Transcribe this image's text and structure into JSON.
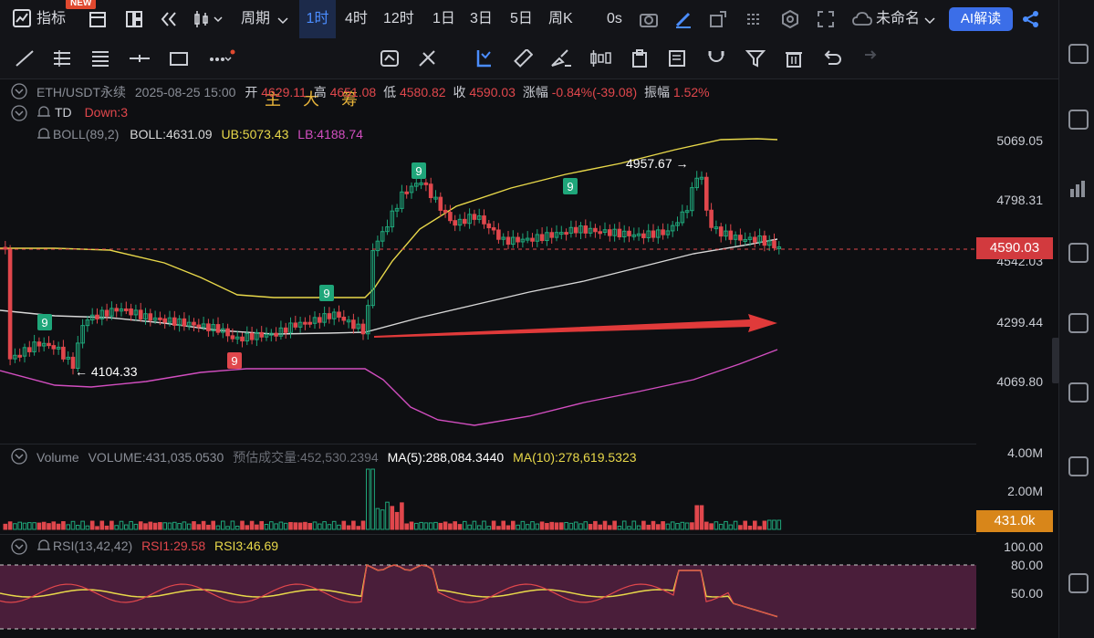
{
  "topbar": {
    "indicator_label": "指标",
    "new_badge": "NEW",
    "period_label": "周期",
    "timeframes": [
      "1时",
      "4时",
      "12时",
      "1日",
      "3日",
      "5日",
      "周K"
    ],
    "active_timeframe": "1时",
    "seconds_label": "0s",
    "layout_name": "未命名",
    "ai_label": "AI解读"
  },
  "toolbar2": {
    "main_label": "主",
    "big_label": "大",
    "chip_label": "筹"
  },
  "ohlc": {
    "symbol": "ETH/USDT永续",
    "datetime": "2025-08-25 15:00",
    "open_label": "开",
    "open": "4629.11",
    "high_label": "高",
    "high": "4651.08",
    "low_label": "低",
    "low": "4580.82",
    "close_label": "收",
    "close": "4590.03",
    "change_label": "涨幅",
    "change": "-0.84%(-39.08)",
    "amp_label": "振幅",
    "amp": "1.52%"
  },
  "td": {
    "label": "TD",
    "value": "Down:3"
  },
  "boll": {
    "label": "BOLL(89,2)",
    "mid": "BOLL:4631.09",
    "ub": "UB:5073.43",
    "lb": "LB:4188.74"
  },
  "price_axis": [
    "5069.05",
    "4798.31",
    "4542.03",
    "4299.44",
    "4069.80"
  ],
  "current_price": "4590.03",
  "annotations": {
    "high": "4957.67 →",
    "low": "← 4104.33",
    "td_nine": "9"
  },
  "volume": {
    "label": "Volume",
    "value": "VOLUME:431,035.0530",
    "est": "预估成交量:452,530.2394",
    "ma5": "MA(5):288,084.3440",
    "ma10": "MA(10):278,619.5323",
    "axis": [
      "4.00M",
      "2.00M"
    ],
    "current": "431.0k"
  },
  "rsi": {
    "label": "RSI(13,42,42)",
    "rsi1": "RSI1:29.58",
    "rsi3": "RSI3:46.69",
    "axis": [
      "100.00",
      "80.00",
      "50.00"
    ]
  },
  "colors": {
    "up": "#1fa67a",
    "down": "#e0474c",
    "boll_ub": "#e8d84a",
    "boll_lb": "#d24ec0",
    "boll_mid": "#d8d8d8",
    "price_tag": "#d23a3e",
    "vol_tag": "#d8861a"
  }
}
